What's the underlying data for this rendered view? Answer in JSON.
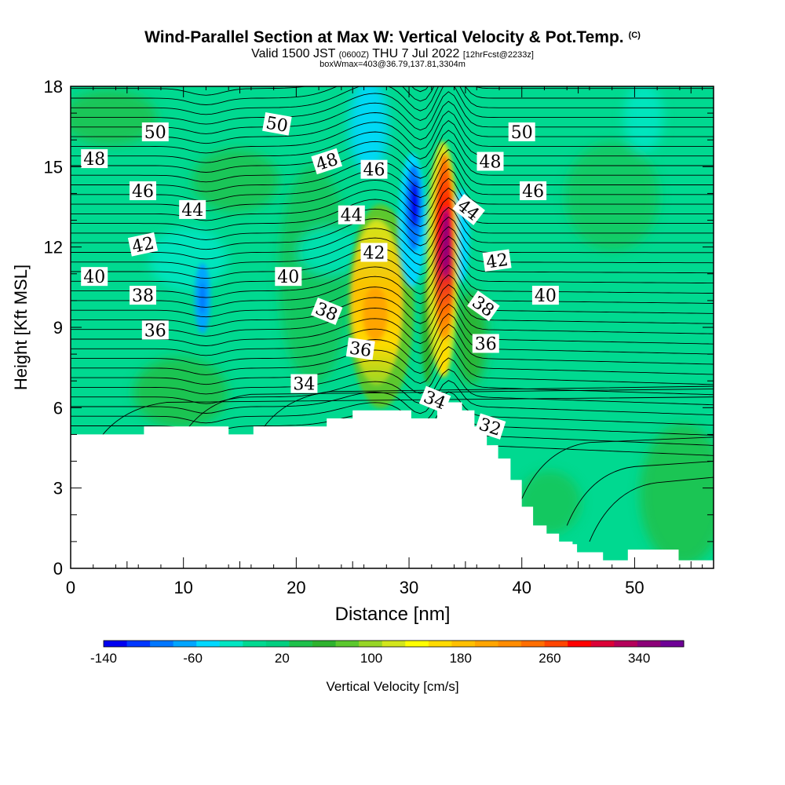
{
  "header": {
    "title": "Wind-Parallel Section at Max W: Vertical Velocity & Pot.Temp.",
    "title_mark": "(C)",
    "valid_prefix": "Valid 1500 JST",
    "valid_utc": "(0600Z)",
    "valid_date": "THU 7 Jul 2022",
    "forecast_info": "[12hrFcst@2233z]",
    "box_info": "boxWmax=403@36.79,137.81,3304m"
  },
  "colorbar": {
    "label": "Vertical Velocity [cm/s]",
    "tick_labels": [
      "-140",
      "-60",
      "20",
      "100",
      "180",
      "260",
      "340"
    ],
    "colors": [
      "#0000f0",
      "#0037ff",
      "#0077ff",
      "#00a5ff",
      "#00d8ff",
      "#00e6c2",
      "#00d990",
      "#00cf80",
      "#1ec14b",
      "#2eb32e",
      "#5bc82d",
      "#97d626",
      "#d2e61c",
      "#ffff00",
      "#ffdb00",
      "#ffc000",
      "#ffa500",
      "#ff8c00",
      "#ff6e00",
      "#ff4500",
      "#ff0000",
      "#dc0037",
      "#b4005a",
      "#8c0078",
      "#6e0096"
    ]
  },
  "chart_data": {
    "type": "heatmap",
    "description_fields": "filled contours of vertical velocity with potential temperature isolines",
    "xlabel": "Distance [nm]",
    "ylabel": "Height [Kft MSL]",
    "xlim": [
      0,
      57
    ],
    "ylim": [
      0,
      18
    ],
    "x_ticks": [
      "0",
      "10",
      "20",
      "30",
      "40",
      "50"
    ],
    "y_ticks": [
      "0",
      "3",
      "6",
      "9",
      "12",
      "15",
      "18"
    ],
    "color_variable": "Vertical Velocity [cm/s]",
    "color_range": [
      -140,
      380
    ],
    "contour_variable": "Pot.Temp.",
    "contour_labels": [
      {
        "text": "50",
        "x": 7.5,
        "y": 16.3,
        "rot": 0
      },
      {
        "text": "50",
        "x": 18.3,
        "y": 16.6,
        "rot": 10
      },
      {
        "text": "50",
        "x": 40.0,
        "y": 16.3,
        "rot": 0
      },
      {
        "text": "48",
        "x": 2.1,
        "y": 15.3,
        "rot": 0
      },
      {
        "text": "48",
        "x": 22.7,
        "y": 15.2,
        "rot": -18
      },
      {
        "text": "48",
        "x": 37.2,
        "y": 15.2,
        "rot": 0
      },
      {
        "text": "46",
        "x": 6.4,
        "y": 14.1,
        "rot": 0
      },
      {
        "text": "46",
        "x": 26.9,
        "y": 14.9,
        "rot": 0
      },
      {
        "text": "46",
        "x": 41.0,
        "y": 14.1,
        "rot": 0
      },
      {
        "text": "44",
        "x": 10.8,
        "y": 13.4,
        "rot": 0
      },
      {
        "text": "44",
        "x": 24.9,
        "y": 13.2,
        "rot": 0
      },
      {
        "text": "44",
        "x": 35.3,
        "y": 13.4,
        "rot": 38
      },
      {
        "text": "42",
        "x": 6.4,
        "y": 12.1,
        "rot": -12
      },
      {
        "text": "42",
        "x": 26.9,
        "y": 11.8,
        "rot": 0
      },
      {
        "text": "42",
        "x": 37.8,
        "y": 11.5,
        "rot": -8
      },
      {
        "text": "40",
        "x": 2.1,
        "y": 10.9,
        "rot": 0
      },
      {
        "text": "40",
        "x": 19.3,
        "y": 10.9,
        "rot": 0
      },
      {
        "text": "40",
        "x": 42.1,
        "y": 10.2,
        "rot": 0
      },
      {
        "text": "38",
        "x": 6.4,
        "y": 10.2,
        "rot": 0
      },
      {
        "text": "38",
        "x": 22.7,
        "y": 9.6,
        "rot": 22
      },
      {
        "text": "38",
        "x": 36.6,
        "y": 9.8,
        "rot": 35
      },
      {
        "text": "36",
        "x": 7.5,
        "y": 8.9,
        "rot": 0
      },
      {
        "text": "36",
        "x": 25.7,
        "y": 8.2,
        "rot": 8
      },
      {
        "text": "36",
        "x": 36.8,
        "y": 8.4,
        "rot": 0
      },
      {
        "text": "34",
        "x": 20.7,
        "y": 6.9,
        "rot": 0
      },
      {
        "text": "34",
        "x": 32.3,
        "y": 6.3,
        "rot": 22
      },
      {
        "text": "32",
        "x": 37.2,
        "y": 5.3,
        "rot": 18
      }
    ],
    "terrain_top": [
      [
        0,
        5.0
      ],
      [
        6.5,
        5.0
      ],
      [
        6.5,
        5.3
      ],
      [
        14.0,
        5.3
      ],
      [
        14.0,
        5.0
      ],
      [
        16.2,
        5.0
      ],
      [
        16.2,
        5.3
      ],
      [
        22.7,
        5.3
      ],
      [
        22.7,
        5.6
      ],
      [
        25.0,
        5.6
      ],
      [
        25.0,
        5.9
      ],
      [
        30.2,
        5.9
      ],
      [
        30.2,
        5.6
      ],
      [
        32.5,
        5.6
      ],
      [
        32.5,
        6.2
      ],
      [
        34.7,
        6.2
      ],
      [
        34.7,
        5.9
      ],
      [
        35.8,
        5.9
      ],
      [
        35.8,
        5.3
      ],
      [
        36.9,
        5.3
      ],
      [
        36.9,
        4.6
      ],
      [
        37.9,
        4.6
      ],
      [
        37.9,
        4.1
      ],
      [
        39.0,
        4.1
      ],
      [
        39.0,
        3.3
      ],
      [
        40.0,
        3.3
      ],
      [
        40.0,
        2.3
      ],
      [
        41.0,
        2.3
      ],
      [
        41.0,
        1.6
      ],
      [
        42.2,
        1.6
      ],
      [
        42.2,
        1.3
      ],
      [
        43.3,
        1.3
      ],
      [
        43.3,
        1.0
      ],
      [
        44.5,
        1.0
      ],
      [
        44.5,
        0.9
      ],
      [
        44.9,
        0.9
      ],
      [
        44.9,
        0.6
      ],
      [
        47.2,
        0.6
      ],
      [
        47.2,
        0.3
      ],
      [
        49.4,
        0.3
      ],
      [
        49.4,
        0.7
      ],
      [
        53.9,
        0.7
      ],
      [
        53.9,
        0.3
      ],
      [
        57,
        0.3
      ]
    ]
  }
}
